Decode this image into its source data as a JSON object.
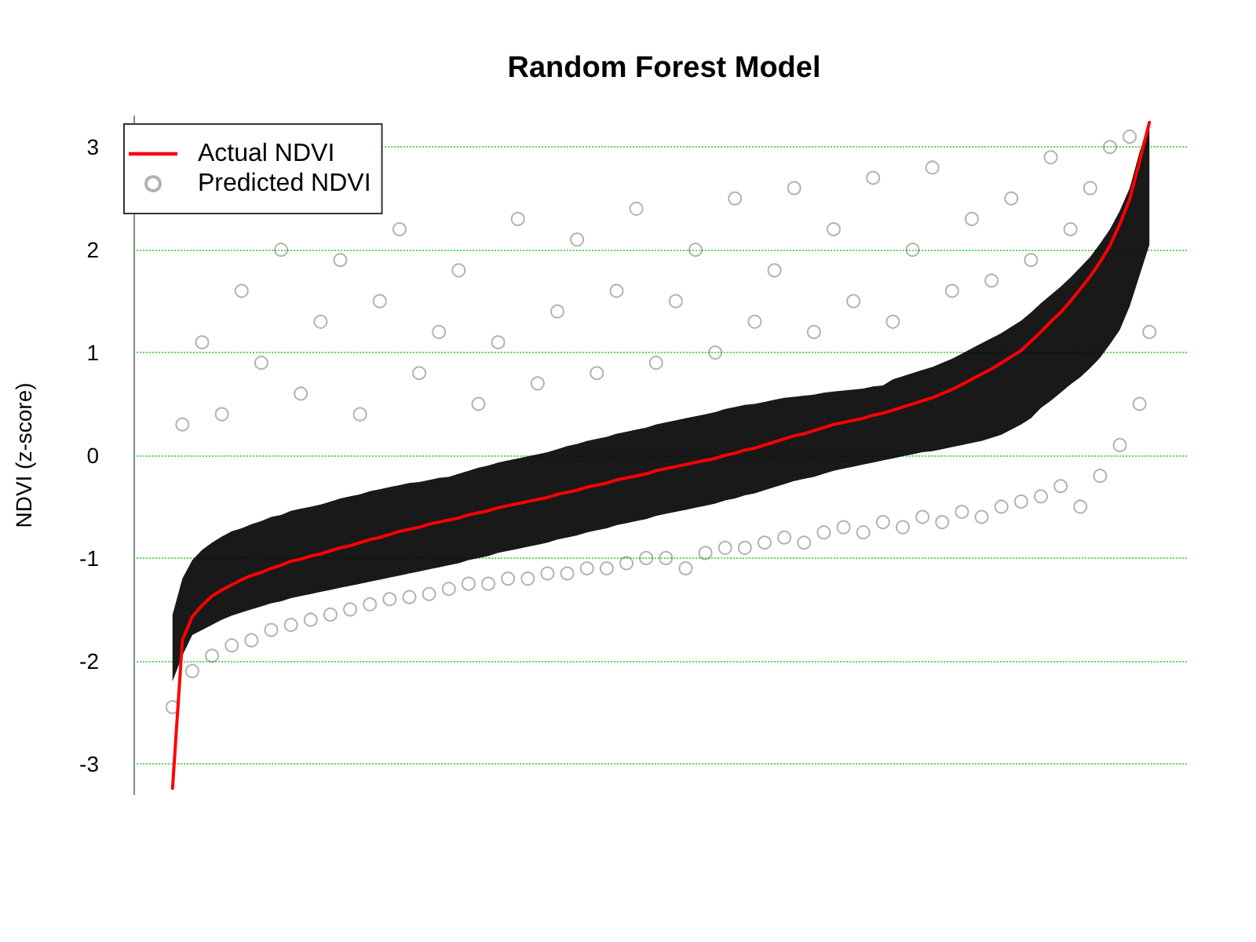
{
  "chart_data": {
    "type": "line",
    "title": "Random Forest Model",
    "ylabel": "NDVI (z-score)",
    "categories": [
      null,
      null,
      null,
      null,
      null,
      null,
      null,
      null,
      null,
      null,
      null,
      null,
      null,
      null,
      null,
      null,
      null,
      null,
      null,
      null,
      null,
      null,
      null,
      null,
      null,
      null,
      null,
      null,
      null,
      null,
      null,
      null,
      null,
      null,
      null,
      null,
      null,
      null,
      null,
      null,
      null,
      null,
      null,
      null,
      null,
      null,
      null,
      null,
      null,
      null,
      null,
      null,
      null,
      null,
      null,
      null,
      null,
      null,
      null,
      null,
      null,
      null,
      null,
      null,
      null,
      null,
      null,
      null,
      null,
      null,
      null,
      null,
      null,
      null,
      null,
      null,
      null,
      null,
      null,
      null,
      null,
      null,
      null,
      null,
      null,
      null,
      null,
      null,
      null,
      null,
      null,
      null,
      null,
      null,
      null,
      null,
      null,
      null,
      null,
      null
    ],
    "series": [
      {
        "name": "Actual NDVI",
        "color": "#ff0000",
        "values": [
          -3.24,
          -1.8,
          -1.57,
          -1.46,
          -1.37,
          -1.31,
          -1.26,
          -1.21,
          -1.17,
          -1.14,
          -1.1,
          -1.07,
          -1.03,
          -1.01,
          -0.98,
          -0.96,
          -0.93,
          -0.9,
          -0.88,
          -0.85,
          -0.82,
          -0.8,
          -0.77,
          -0.74,
          -0.72,
          -0.7,
          -0.67,
          -0.65,
          -0.63,
          -0.61,
          -0.58,
          -0.56,
          -0.54,
          -0.51,
          -0.49,
          -0.47,
          -0.45,
          -0.43,
          -0.41,
          -0.38,
          -0.36,
          -0.34,
          -0.31,
          -0.29,
          -0.27,
          -0.24,
          -0.22,
          -0.2,
          -0.18,
          -0.15,
          -0.13,
          -0.11,
          -0.09,
          -0.07,
          -0.05,
          -0.03,
          0.0,
          0.02,
          0.05,
          0.07,
          0.1,
          0.13,
          0.16,
          0.19,
          0.21,
          0.24,
          0.27,
          0.3,
          0.32,
          0.34,
          0.36,
          0.39,
          0.41,
          0.44,
          0.47,
          0.5,
          0.53,
          0.56,
          0.6,
          0.64,
          0.69,
          0.74,
          0.79,
          0.84,
          0.9,
          0.96,
          1.02,
          1.11,
          1.2,
          1.3,
          1.39,
          1.5,
          1.62,
          1.74,
          1.88,
          2.04,
          2.25,
          2.49,
          2.86,
          3.24
        ]
      },
      {
        "name": "Predicted NDVI",
        "type": "scatter",
        "color": "#000000",
        "marker": "circle",
        "values": [
          -2.45,
          0.3,
          -2.1,
          1.1,
          -1.95,
          0.4,
          -1.85,
          1.6,
          -1.8,
          0.9,
          -1.7,
          2.0,
          -1.65,
          0.6,
          -1.6,
          1.3,
          -1.55,
          1.9,
          -1.5,
          0.4,
          -1.45,
          1.5,
          -1.4,
          2.2,
          -1.38,
          0.8,
          -1.35,
          1.2,
          -1.3,
          1.8,
          -1.25,
          0.5,
          -1.25,
          1.1,
          -1.2,
          2.3,
          -1.2,
          0.7,
          -1.15,
          1.4,
          -1.15,
          2.1,
          -1.1,
          0.8,
          -1.1,
          1.6,
          -1.05,
          2.4,
          -1.0,
          0.9,
          -1.0,
          1.5,
          -1.1,
          2.0,
          -0.95,
          1.0,
          -0.9,
          2.5,
          -0.9,
          1.3,
          -0.85,
          1.8,
          -0.8,
          2.6,
          -0.85,
          1.2,
          -0.75,
          2.2,
          -0.7,
          1.5,
          -0.75,
          2.7,
          -0.65,
          1.3,
          -0.7,
          2.0,
          -0.6,
          2.8,
          -0.65,
          1.6,
          -0.55,
          2.3,
          -0.6,
          1.7,
          -0.5,
          2.5,
          -0.45,
          1.9,
          -0.4,
          2.9,
          -0.3,
          2.2,
          -0.5,
          2.6,
          -0.2,
          3.0,
          0.1,
          3.1,
          0.5,
          1.2
        ],
        "upper": [
          -1.55,
          -1.2,
          -1.02,
          -0.92,
          -0.85,
          -0.79,
          -0.74,
          -0.71,
          -0.67,
          -0.64,
          -0.6,
          -0.58,
          -0.54,
          -0.52,
          -0.5,
          -0.48,
          -0.45,
          -0.42,
          -0.4,
          -0.38,
          -0.35,
          -0.33,
          -0.31,
          -0.29,
          -0.27,
          -0.26,
          -0.24,
          -0.22,
          -0.21,
          -0.18,
          -0.15,
          -0.12,
          -0.1,
          -0.07,
          -0.05,
          -0.03,
          -0.01,
          0.01,
          0.03,
          0.06,
          0.09,
          0.11,
          0.14,
          0.16,
          0.18,
          0.21,
          0.23,
          0.25,
          0.27,
          0.3,
          0.32,
          0.34,
          0.36,
          0.38,
          0.4,
          0.42,
          0.45,
          0.47,
          0.49,
          0.5,
          0.52,
          0.54,
          0.56,
          0.57,
          0.58,
          0.59,
          0.61,
          0.62,
          0.63,
          0.64,
          0.65,
          0.67,
          0.68,
          0.74,
          0.77,
          0.8,
          0.83,
          0.86,
          0.9,
          0.94,
          0.99,
          1.04,
          1.09,
          1.14,
          1.19,
          1.25,
          1.31,
          1.39,
          1.48,
          1.56,
          1.64,
          1.73,
          1.83,
          1.93,
          2.06,
          2.2,
          2.38,
          2.6,
          2.95,
          3.24
        ],
        "lower": [
          -2.2,
          -1.95,
          -1.75,
          -1.7,
          -1.65,
          -1.6,
          -1.56,
          -1.53,
          -1.5,
          -1.47,
          -1.44,
          -1.42,
          -1.39,
          -1.37,
          -1.35,
          -1.33,
          -1.31,
          -1.29,
          -1.27,
          -1.25,
          -1.23,
          -1.21,
          -1.19,
          -1.17,
          -1.15,
          -1.13,
          -1.11,
          -1.09,
          -1.07,
          -1.05,
          -1.02,
          -1.0,
          -0.98,
          -0.95,
          -0.93,
          -0.91,
          -0.89,
          -0.87,
          -0.85,
          -0.82,
          -0.8,
          -0.78,
          -0.75,
          -0.73,
          -0.71,
          -0.68,
          -0.66,
          -0.64,
          -0.62,
          -0.59,
          -0.57,
          -0.55,
          -0.53,
          -0.51,
          -0.49,
          -0.47,
          -0.44,
          -0.42,
          -0.39,
          -0.37,
          -0.34,
          -0.31,
          -0.28,
          -0.25,
          -0.23,
          -0.21,
          -0.18,
          -0.15,
          -0.13,
          -0.11,
          -0.09,
          -0.07,
          -0.05,
          -0.03,
          -0.01,
          0.01,
          0.03,
          0.04,
          0.06,
          0.08,
          0.1,
          0.12,
          0.14,
          0.17,
          0.2,
          0.25,
          0.3,
          0.36,
          0.46,
          0.53,
          0.61,
          0.69,
          0.76,
          0.85,
          0.95,
          1.08,
          1.22,
          1.45,
          1.75,
          2.05
        ]
      }
    ],
    "ylim": [
      -3.3,
      3.3
    ],
    "yticks": [
      -3,
      -2,
      -1,
      0,
      1,
      2,
      3
    ],
    "grid": "y",
    "legend": "top left",
    "tick_labels": "y"
  }
}
